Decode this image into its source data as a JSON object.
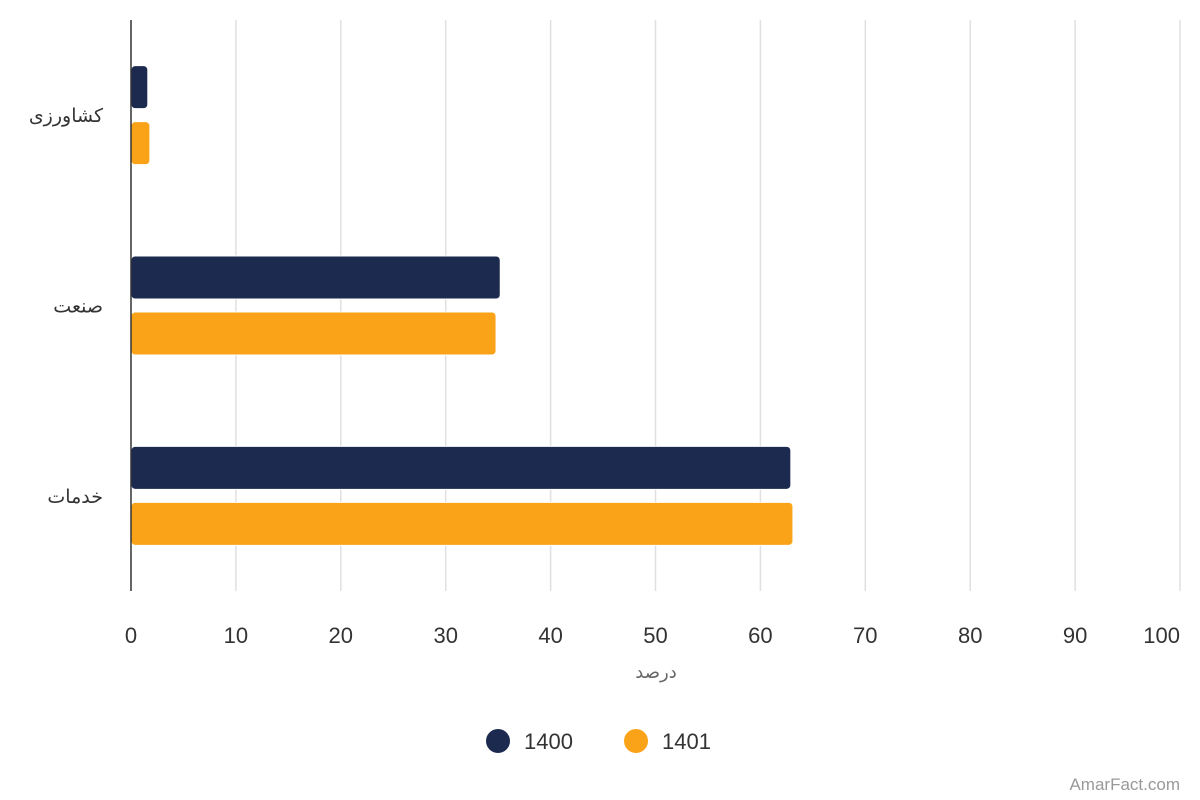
{
  "chart_data": {
    "type": "bar",
    "orientation": "horizontal",
    "categories": [
      "کشاورزی",
      "صنعت",
      "خدمات"
    ],
    "series": [
      {
        "name": "1400",
        "color": "#1b2a4e",
        "values": [
          1.6,
          35.2,
          62.9
        ]
      },
      {
        "name": "1401",
        "color": "#faa318",
        "values": [
          1.8,
          34.8,
          63.1
        ]
      }
    ],
    "xlabel": "درصد",
    "ylabel": "",
    "xlim": [
      0,
      100
    ],
    "x_ticks": [
      "0",
      "10",
      "20",
      "30",
      "40",
      "50",
      "60",
      "70",
      "80",
      "90",
      "100"
    ],
    "grid": true,
    "legend_position": "bottom-center"
  },
  "credit": "AmarFact.com"
}
